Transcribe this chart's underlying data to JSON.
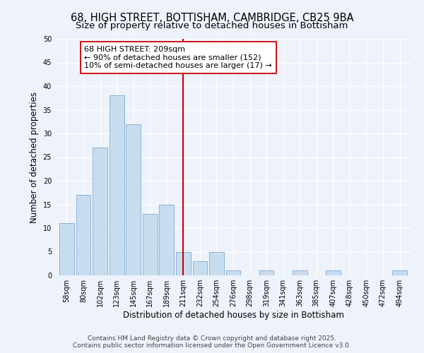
{
  "title": "68, HIGH STREET, BOTTISHAM, CAMBRIDGE, CB25 9BA",
  "subtitle": "Size of property relative to detached houses in Bottisham",
  "xlabel": "Distribution of detached houses by size in Bottisham",
  "ylabel": "Number of detached properties",
  "bin_labels": [
    "58sqm",
    "80sqm",
    "102sqm",
    "123sqm",
    "145sqm",
    "167sqm",
    "189sqm",
    "211sqm",
    "232sqm",
    "254sqm",
    "276sqm",
    "298sqm",
    "319sqm",
    "341sqm",
    "363sqm",
    "385sqm",
    "407sqm",
    "428sqm",
    "450sqm",
    "472sqm",
    "494sqm"
  ],
  "bar_heights": [
    11,
    17,
    27,
    38,
    32,
    13,
    15,
    5,
    3,
    5,
    1,
    0,
    1,
    0,
    1,
    0,
    1,
    0,
    0,
    0,
    1
  ],
  "bar_color": "#c8dcf0",
  "bar_edge_color": "#8ab4d8",
  "vline_x": 7,
  "vline_color": "#cc0000",
  "annotation_line1": "68 HIGH STREET: 209sqm",
  "annotation_line2": "← 90% of detached houses are smaller (152)",
  "annotation_line3": "10% of semi-detached houses are larger (17) →",
  "annotation_box_color": "#ffffff",
  "annotation_box_edge_color": "#cc0000",
  "ylim": [
    0,
    50
  ],
  "yticks": [
    0,
    5,
    10,
    15,
    20,
    25,
    30,
    35,
    40,
    45,
    50
  ],
  "footer_line1": "Contains HM Land Registry data © Crown copyright and database right 2025.",
  "footer_line2": "Contains public sector information licensed under the Open Government Licence v3.0.",
  "bg_color": "#eef2fa",
  "grid_color": "#ffffff",
  "title_fontsize": 10.5,
  "subtitle_fontsize": 9.5,
  "axis_label_fontsize": 8.5,
  "tick_fontsize": 7,
  "annotation_fontsize": 8,
  "footer_fontsize": 6.5
}
